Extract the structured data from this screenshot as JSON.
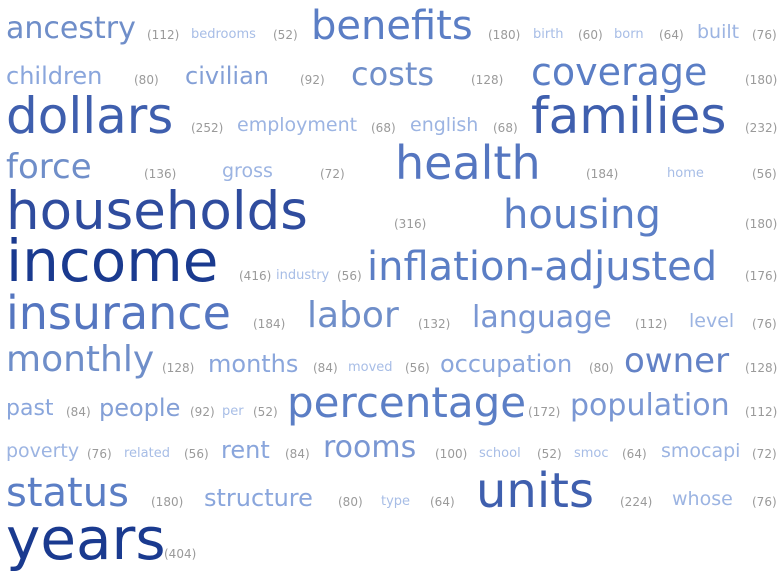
{
  "terms": [
    {
      "word": "ancestry",
      "count": "(112)",
      "color": "#6f8ec9"
    },
    {
      "word": "bedrooms",
      "count": "(52)",
      "color": "#a7bde6"
    },
    {
      "word": "benefits",
      "count": "(180)",
      "color": "#5b7ec5"
    },
    {
      "word": "birth",
      "count": "(60)",
      "color": "#a7bde6"
    },
    {
      "word": "born",
      "count": "(64)",
      "color": "#a7bde6"
    },
    {
      "word": "built",
      "count": "(76)",
      "color": "#9cb4e2"
    },
    {
      "word": "children",
      "count": "(80)",
      "color": "#8aa6dc"
    },
    {
      "word": "civilian",
      "count": "(92)",
      "color": "#839fd6"
    },
    {
      "word": "costs",
      "count": "(128)",
      "color": "#6f8ec9"
    },
    {
      "word": "coverage",
      "count": "(180)",
      "color": "#5b7ec5"
    },
    {
      "word": "dollars",
      "count": "(252)",
      "color": "#3f5fae"
    },
    {
      "word": "employment",
      "count": "(68)",
      "color": "#9cb4e2"
    },
    {
      "word": "english",
      "count": "(68)",
      "color": "#9cb4e2"
    },
    {
      "word": "families",
      "count": "(232)",
      "color": "#3f5fae"
    },
    {
      "word": "force",
      "count": "(136)",
      "color": "#6f8ec9"
    },
    {
      "word": "gross",
      "count": "(72)",
      "color": "#9cb4e2"
    },
    {
      "word": "health",
      "count": "(184)",
      "color": "#5576c0"
    },
    {
      "word": "home",
      "count": "(56)",
      "color": "#a7bde6"
    },
    {
      "word": "households",
      "count": "(316)",
      "color": "#2f4c9e"
    },
    {
      "word": "housing",
      "count": "(180)",
      "color": "#5b7ec5"
    },
    {
      "word": "income",
      "count": "(416)",
      "color": "#1a3a8f"
    },
    {
      "word": "industry",
      "count": "(56)",
      "color": "#a7bde6"
    },
    {
      "word": "inflation-adjusted",
      "count": "(176)",
      "color": "#5b7ec5"
    },
    {
      "word": "insurance",
      "count": "(184)",
      "color": "#5576c0"
    },
    {
      "word": "labor",
      "count": "(132)",
      "color": "#6f8ec9"
    },
    {
      "word": "language",
      "count": "(112)",
      "color": "#7a97d3"
    },
    {
      "word": "level",
      "count": "(76)",
      "color": "#9cb4e2"
    },
    {
      "word": "monthly",
      "count": "(128)",
      "color": "#6f8ec9"
    },
    {
      "word": "months",
      "count": "(84)",
      "color": "#8aa6dc"
    },
    {
      "word": "moved",
      "count": "(56)",
      "color": "#a7bde6"
    },
    {
      "word": "occupation",
      "count": "(80)",
      "color": "#8aa6dc"
    },
    {
      "word": "owner",
      "count": "(128)",
      "color": "#6382c6"
    },
    {
      "word": "past",
      "count": "(84)",
      "color": "#8aa6dc"
    },
    {
      "word": "people",
      "count": "(92)",
      "color": "#839fd6"
    },
    {
      "word": "per",
      "count": "(52)",
      "color": "#a7bde6"
    },
    {
      "word": "percentage",
      "count": "(172)",
      "color": "#5b7ec5"
    },
    {
      "word": "population",
      "count": "(112)",
      "color": "#7a97d3"
    },
    {
      "word": "poverty",
      "count": "(76)",
      "color": "#9cb4e2"
    },
    {
      "word": "related",
      "count": "(56)",
      "color": "#a7bde6"
    },
    {
      "word": "rent",
      "count": "(84)",
      "color": "#8aa6dc"
    },
    {
      "word": "rooms",
      "count": "(100)",
      "color": "#7a97d3"
    },
    {
      "word": "school",
      "count": "(52)",
      "color": "#a7bde6"
    },
    {
      "word": "smoc",
      "count": "(64)",
      "color": "#a7bde6"
    },
    {
      "word": "smocapi",
      "count": "(72)",
      "color": "#9cb4e2"
    },
    {
      "word": "status",
      "count": "(180)",
      "color": "#5b7ec5"
    },
    {
      "word": "structure",
      "count": "(80)",
      "color": "#8aa6dc"
    },
    {
      "word": "type",
      "count": "(64)",
      "color": "#a7bde6"
    },
    {
      "word": "units",
      "count": "(224)",
      "color": "#3f5fae"
    },
    {
      "word": "whose",
      "count": "(76)",
      "color": "#9cb4e2"
    },
    {
      "word": "years",
      "count": "(404)",
      "color": "#1a3a8f"
    }
  ]
}
